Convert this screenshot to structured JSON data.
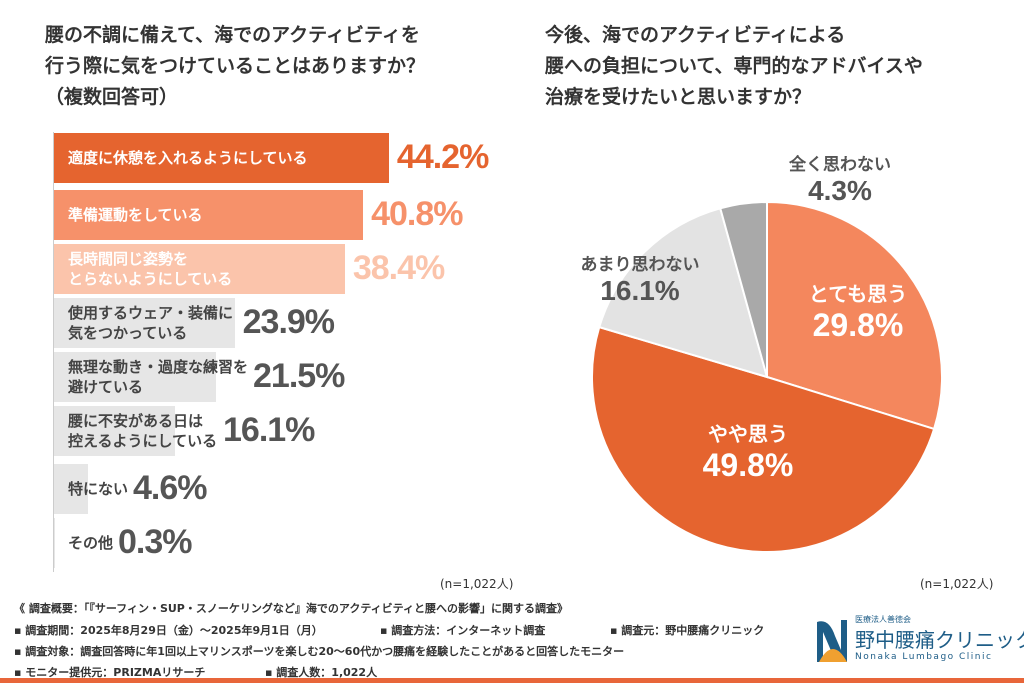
{
  "left": {
    "question": [
      "腰の不調に備えて、海でのアクティビティを",
      "行う際に気をつけていることはありますか？",
      "（複数回答可）"
    ],
    "n": "(n=1,022人)"
  },
  "right": {
    "question": [
      "今後、海でのアクティビティによる",
      "腰への負担について、専門的なアドバイスや",
      "治療を受けたいと思いますか？"
    ],
    "n": "(n=1,022人)"
  },
  "chart_data": [
    {
      "type": "bar",
      "orientation": "horizontal",
      "categories": [
        "適度に休憩を入れるようにしている",
        "準備運動をしている",
        "長時間同じ姿勢をとらないようにしている",
        "使用するウェア・装備に気をつかっている",
        "無理な動き・過度な練習を避けている",
        "腰に不安がある日は控えるようにしている",
        "特にない",
        "その他"
      ],
      "label_lines": [
        [
          "適度に休憩を入れるようにしている"
        ],
        [
          "準備運動をしている"
        ],
        [
          "長時間同じ姿勢を",
          "とらないようにしている"
        ],
        [
          "使用するウェア・装備に",
          "気をつかっている"
        ],
        [
          "無理な動き・過度な練習を",
          "避けている"
        ],
        [
          "腰に不安がある日は",
          "控えるようにしている"
        ],
        [
          "特にない"
        ],
        [
          "その他"
        ]
      ],
      "values": [
        44.2,
        40.8,
        38.4,
        23.9,
        21.5,
        16.1,
        4.6,
        0.3
      ],
      "value_labels": [
        "44.2%",
        "40.8%",
        "38.4%",
        "23.9%",
        "21.5%",
        "16.1%",
        "4.6%",
        "0.3%"
      ],
      "colors": [
        "#e5642f",
        "#f6916a",
        "#fbc4ab",
        "#e6e6e6",
        "#e6e6e6",
        "#e6e6e6",
        "#e6e6e6",
        "#e6e6e6"
      ],
      "value_colors": [
        "#e5642f",
        "#f6916a",
        "#fbc4ab",
        "#555555",
        "#555555",
        "#555555",
        "#555555",
        "#555555"
      ]
    },
    {
      "type": "pie",
      "categories": [
        "とても思う",
        "やや思う",
        "あまり思わない",
        "全く思わない"
      ],
      "values": [
        29.8,
        49.8,
        16.1,
        4.3
      ],
      "value_labels": [
        "29.8%",
        "49.8%",
        "16.1%",
        "4.3%"
      ],
      "colors": [
        "#f4875d",
        "#e5642f",
        "#e3e3e3",
        "#a9a9a9"
      ]
    }
  ],
  "footer": {
    "lines": [
      "《 調査概要：「『サーフィン・SUP・スノーケリングなど』海でのアクティビティと腰への影響」に関する調査》",
      "▪ 調査期間：2025年8月29日（金）～2025年9月1日（月）",
      "▪ 調査方法：インターネット調査",
      "▪ 調査元：野中腰痛クリニック",
      "▪ 調査対象：調査回答時に年1回以上マリンスポーツを楽しむ20～60代かつ腰痛を経験したことがあると回答したモニター",
      "▪ モニター提供元：PRIZMAリサーチ",
      "▪ 調査人数：1,022人"
    ]
  },
  "logo": {
    "org": "医療法人善徳会",
    "name": "野中腰痛クリニック",
    "en": "Nonaka Lumbago Clinic",
    "color": "#1e5d87"
  }
}
